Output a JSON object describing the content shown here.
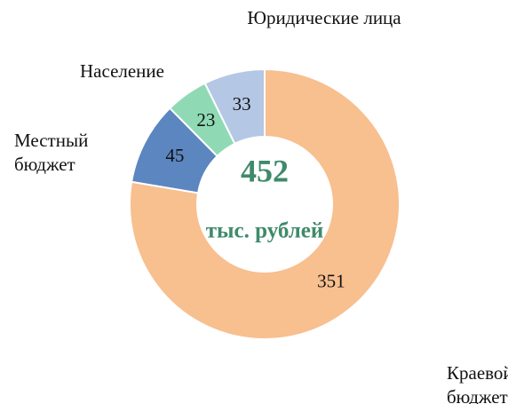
{
  "chart_data": {
    "type": "donut",
    "categories": [
      "Краевой бюджет",
      "Местный бюджет",
      "Население",
      "Юридические лица"
    ],
    "values": [
      351,
      45,
      23,
      33
    ],
    "colors": [
      "#f8bf8f",
      "#5b86c0",
      "#8fdab5",
      "#b4c7e4"
    ],
    "total": 452,
    "total_unit": "тыс. рублей"
  }
}
